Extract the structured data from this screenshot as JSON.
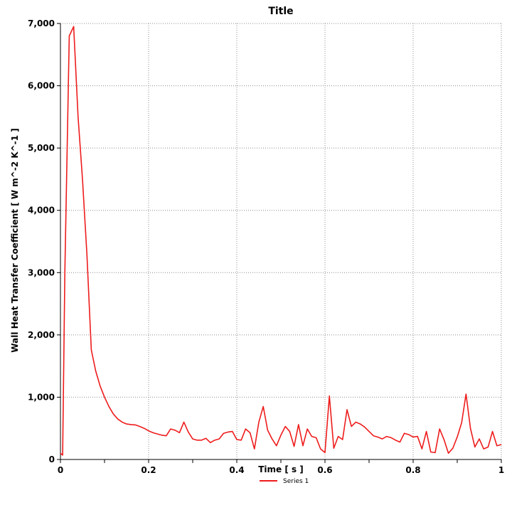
{
  "chart_data": {
    "type": "line",
    "title": "Title",
    "xlabel": "Time [ s ]",
    "ylabel": "Wall Heat Transfer Coefficient [ W m^-2 K^-1 ]",
    "xlim": [
      0,
      1
    ],
    "ylim": [
      0,
      7000
    ],
    "x_ticks": [
      0,
      0.2,
      0.4,
      0.6,
      0.8,
      1
    ],
    "x_tick_labels": [
      "0",
      "0.2",
      "0.4",
      "0.6",
      "0.8",
      "1"
    ],
    "y_ticks": [
      0,
      1000,
      2000,
      3000,
      4000,
      5000,
      6000,
      7000
    ],
    "y_tick_labels": [
      "0",
      "1,000",
      "2,000",
      "3,000",
      "4,000",
      "5,000",
      "6,000",
      "7,000"
    ],
    "grid": true,
    "legend_position": "bottom-center",
    "series": [
      {
        "name": "Series 1",
        "color": "#ee1c1c",
        "points": [
          [
            0.0,
            100
          ],
          [
            0.005,
            70
          ],
          [
            0.01,
            3000
          ],
          [
            0.02,
            6800
          ],
          [
            0.03,
            6950
          ],
          [
            0.04,
            5500
          ],
          [
            0.05,
            4500
          ],
          [
            0.06,
            3300
          ],
          [
            0.07,
            1760
          ],
          [
            0.08,
            1420
          ],
          [
            0.09,
            1180
          ],
          [
            0.1,
            1000
          ],
          [
            0.11,
            850
          ],
          [
            0.12,
            730
          ],
          [
            0.13,
            650
          ],
          [
            0.14,
            600
          ],
          [
            0.15,
            570
          ],
          [
            0.16,
            560
          ],
          [
            0.17,
            555
          ],
          [
            0.18,
            530
          ],
          [
            0.19,
            500
          ],
          [
            0.2,
            460
          ],
          [
            0.21,
            430
          ],
          [
            0.22,
            410
          ],
          [
            0.23,
            390
          ],
          [
            0.24,
            380
          ],
          [
            0.25,
            490
          ],
          [
            0.26,
            470
          ],
          [
            0.27,
            430
          ],
          [
            0.28,
            600
          ],
          [
            0.29,
            440
          ],
          [
            0.3,
            330
          ],
          [
            0.31,
            310
          ],
          [
            0.32,
            310
          ],
          [
            0.33,
            340
          ],
          [
            0.34,
            270
          ],
          [
            0.35,
            310
          ],
          [
            0.36,
            330
          ],
          [
            0.37,
            420
          ],
          [
            0.38,
            440
          ],
          [
            0.39,
            450
          ],
          [
            0.4,
            320
          ],
          [
            0.41,
            310
          ],
          [
            0.42,
            490
          ],
          [
            0.43,
            430
          ],
          [
            0.44,
            170
          ],
          [
            0.45,
            600
          ],
          [
            0.46,
            850
          ],
          [
            0.47,
            470
          ],
          [
            0.48,
            330
          ],
          [
            0.49,
            220
          ],
          [
            0.5,
            390
          ],
          [
            0.51,
            530
          ],
          [
            0.52,
            450
          ],
          [
            0.53,
            210
          ],
          [
            0.54,
            560
          ],
          [
            0.55,
            220
          ],
          [
            0.56,
            490
          ],
          [
            0.57,
            370
          ],
          [
            0.58,
            350
          ],
          [
            0.59,
            170
          ],
          [
            0.6,
            110
          ],
          [
            0.61,
            1020
          ],
          [
            0.62,
            180
          ],
          [
            0.63,
            370
          ],
          [
            0.64,
            320
          ],
          [
            0.65,
            800
          ],
          [
            0.66,
            530
          ],
          [
            0.67,
            600
          ],
          [
            0.68,
            570
          ],
          [
            0.69,
            520
          ],
          [
            0.7,
            450
          ],
          [
            0.71,
            380
          ],
          [
            0.72,
            360
          ],
          [
            0.73,
            330
          ],
          [
            0.74,
            370
          ],
          [
            0.75,
            350
          ],
          [
            0.76,
            310
          ],
          [
            0.77,
            280
          ],
          [
            0.78,
            420
          ],
          [
            0.79,
            400
          ],
          [
            0.8,
            360
          ],
          [
            0.81,
            370
          ],
          [
            0.82,
            170
          ],
          [
            0.83,
            450
          ],
          [
            0.84,
            120
          ],
          [
            0.85,
            110
          ],
          [
            0.86,
            490
          ],
          [
            0.87,
            320
          ],
          [
            0.88,
            100
          ],
          [
            0.89,
            180
          ],
          [
            0.9,
            360
          ],
          [
            0.91,
            590
          ],
          [
            0.92,
            1050
          ],
          [
            0.93,
            500
          ],
          [
            0.94,
            200
          ],
          [
            0.95,
            330
          ],
          [
            0.96,
            170
          ],
          [
            0.97,
            200
          ],
          [
            0.98,
            450
          ],
          [
            0.99,
            220
          ],
          [
            1.0,
            240
          ]
        ]
      }
    ]
  }
}
